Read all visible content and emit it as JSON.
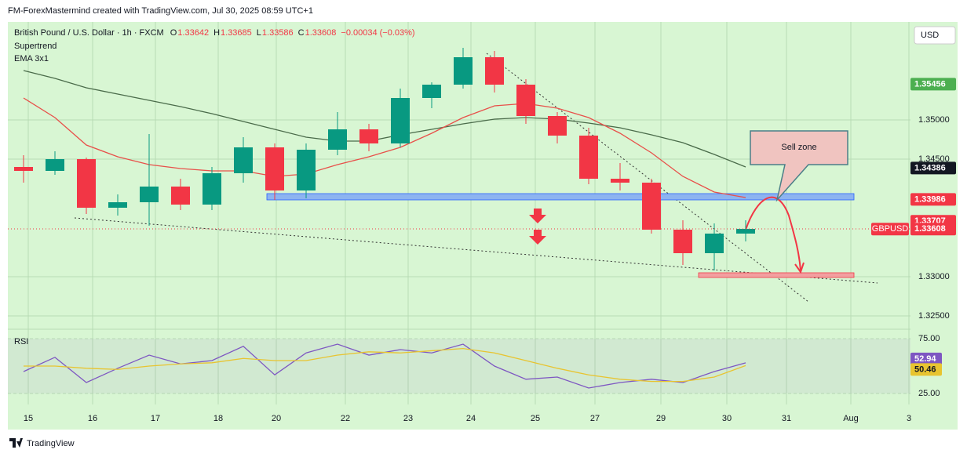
{
  "header": "FM-ForexMastermind created with TradingView.com, Jul 30, 2025 08:59 UTC+1",
  "footer": "TradingView",
  "chart_data": [
    {
      "type": "candlestick",
      "title": "British Pound / U.S. Dollar · 1h · FXCM",
      "ohlc_labels": [
        "O",
        "H",
        "L",
        "C"
      ],
      "ohlc": [
        1.33642,
        1.33685,
        1.33586,
        1.33608
      ],
      "change": "−0.00034 (−0.03%)",
      "indicators": [
        "Supertrend",
        "EMA 3x1"
      ],
      "currency": "USD",
      "symbol": "GBPUSD",
      "annotation": "Sell zone",
      "up_color": "#089981",
      "down_color": "#f23645",
      "xlim": [
        -0.5,
        28.25
      ],
      "xticks": [
        {
          "value": 0.15,
          "label": "15"
        },
        {
          "value": 2.2,
          "label": "16"
        },
        {
          "value": 4.2,
          "label": "17"
        },
        {
          "value": 6.2,
          "label": "18"
        },
        {
          "value": 8.05,
          "label": "20"
        },
        {
          "value": 10.25,
          "label": "22"
        },
        {
          "value": 12.25,
          "label": "23"
        },
        {
          "value": 14.25,
          "label": "24"
        },
        {
          "value": 16.3,
          "label": "25"
        },
        {
          "value": 18.2,
          "label": "27"
        },
        {
          "value": 20.3,
          "label": "29"
        },
        {
          "value": 22.4,
          "label": "30"
        },
        {
          "value": 24.3,
          "label": "31"
        },
        {
          "value": 26.35,
          "label": "Aug"
        },
        {
          "value": 28.2,
          "label": "3"
        }
      ],
      "ylim": [
        1.3233,
        1.3625
      ],
      "yticks": [
        {
          "value": 1.35,
          "label": "1.35000"
        },
        {
          "value": 1.345,
          "label": "1.34500"
        },
        {
          "value": 1.33,
          "label": "1.33000"
        },
        {
          "value": 1.325,
          "label": "1.32500"
        }
      ],
      "open": [
        1.344,
        1.3435,
        1.345,
        1.3388,
        1.3395,
        1.3415,
        1.3392,
        1.3432,
        1.3465,
        1.341,
        1.3462,
        1.3488,
        1.347,
        1.3528,
        1.3545,
        1.358,
        1.3545,
        1.3505,
        1.348,
        1.3425,
        1.342,
        1.336,
        1.333,
        1.3355
      ],
      "high": [
        1.3455,
        1.346,
        1.3452,
        1.3405,
        1.3482,
        1.3425,
        1.344,
        1.3478,
        1.347,
        1.347,
        1.351,
        1.3495,
        1.354,
        1.3548,
        1.3592,
        1.3588,
        1.3552,
        1.351,
        1.349,
        1.3445,
        1.3425,
        1.3372,
        1.3368,
        1.3372
      ],
      "low": [
        1.342,
        1.343,
        1.338,
        1.3378,
        1.3365,
        1.3385,
        1.3385,
        1.342,
        1.3398,
        1.34,
        1.3455,
        1.346,
        1.3465,
        1.3515,
        1.354,
        1.3535,
        1.3495,
        1.347,
        1.3418,
        1.341,
        1.3355,
        1.3315,
        1.3308,
        1.3345
      ],
      "close": [
        1.3435,
        1.345,
        1.3388,
        1.3395,
        1.3415,
        1.3392,
        1.3432,
        1.3465,
        1.341,
        1.3462,
        1.3488,
        1.347,
        1.3528,
        1.3545,
        1.358,
        1.3545,
        1.3505,
        1.348,
        1.3425,
        1.342,
        1.336,
        1.333,
        1.3355,
        1.3361
      ],
      "series": [
        {
          "color": "#4a6b4a",
          "values": [
            1.3563,
            1.3553,
            1.3541,
            1.3533,
            1.3525,
            1.3517,
            1.3508,
            1.3498,
            1.3488,
            1.3478,
            1.3473,
            1.3473,
            1.3481,
            1.3488,
            1.3495,
            1.3501,
            1.3503,
            1.3501,
            1.3496,
            1.349,
            1.3481,
            1.3471,
            1.3456,
            1.344
          ]
        },
        {
          "color": "#e8504a",
          "values": [
            1.3528,
            1.3503,
            1.3468,
            1.3453,
            1.3443,
            1.3438,
            1.3435,
            1.3435,
            1.3428,
            1.3431,
            1.3443,
            1.3453,
            1.3465,
            1.3483,
            1.3503,
            1.3518,
            1.3521,
            1.3515,
            1.3503,
            1.3483,
            1.3458,
            1.3428,
            1.3408,
            1.3401
          ]
        }
      ],
      "price_labels": [
        {
          "value": 1.35456,
          "color": "#4caf50"
        },
        {
          "value": 1.34386,
          "color": "#131722"
        },
        {
          "value": 1.33986,
          "color": "#f23645"
        },
        {
          "value": 1.33707,
          "color": "#f23645"
        },
        {
          "value": 1.33608,
          "color": "#f23645"
        }
      ]
    },
    {
      "type": "line",
      "title": "RSI",
      "ylim": [
        15,
        83.6
      ],
      "yticks": [
        {
          "value": 75,
          "label": "75.00"
        },
        {
          "value": 25,
          "label": "25.00"
        }
      ],
      "series": [
        {
          "color": "#7e57c2",
          "values": [
            45,
            58,
            35,
            48,
            60,
            52,
            55,
            68,
            42,
            62,
            70,
            60,
            65,
            62,
            70,
            50,
            38,
            40,
            30,
            35,
            38,
            35,
            45,
            52.94
          ]
        },
        {
          "color": "#e8c430",
          "values": [
            50,
            50,
            48,
            47,
            50,
            52,
            53,
            57,
            55,
            55,
            60,
            63,
            62,
            64,
            66,
            62,
            55,
            48,
            42,
            38,
            36,
            36,
            40,
            50.46
          ]
        }
      ]
    }
  ]
}
